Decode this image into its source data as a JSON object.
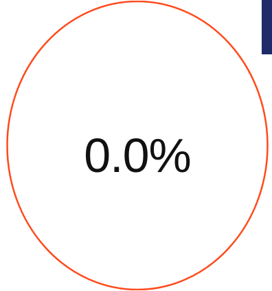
{
  "progress": {
    "value_text": "0.0%",
    "value_fraction": 0.0,
    "ring_color": "#ff4a1c"
  },
  "corner_panel": {
    "color": "#1f2a6b"
  }
}
